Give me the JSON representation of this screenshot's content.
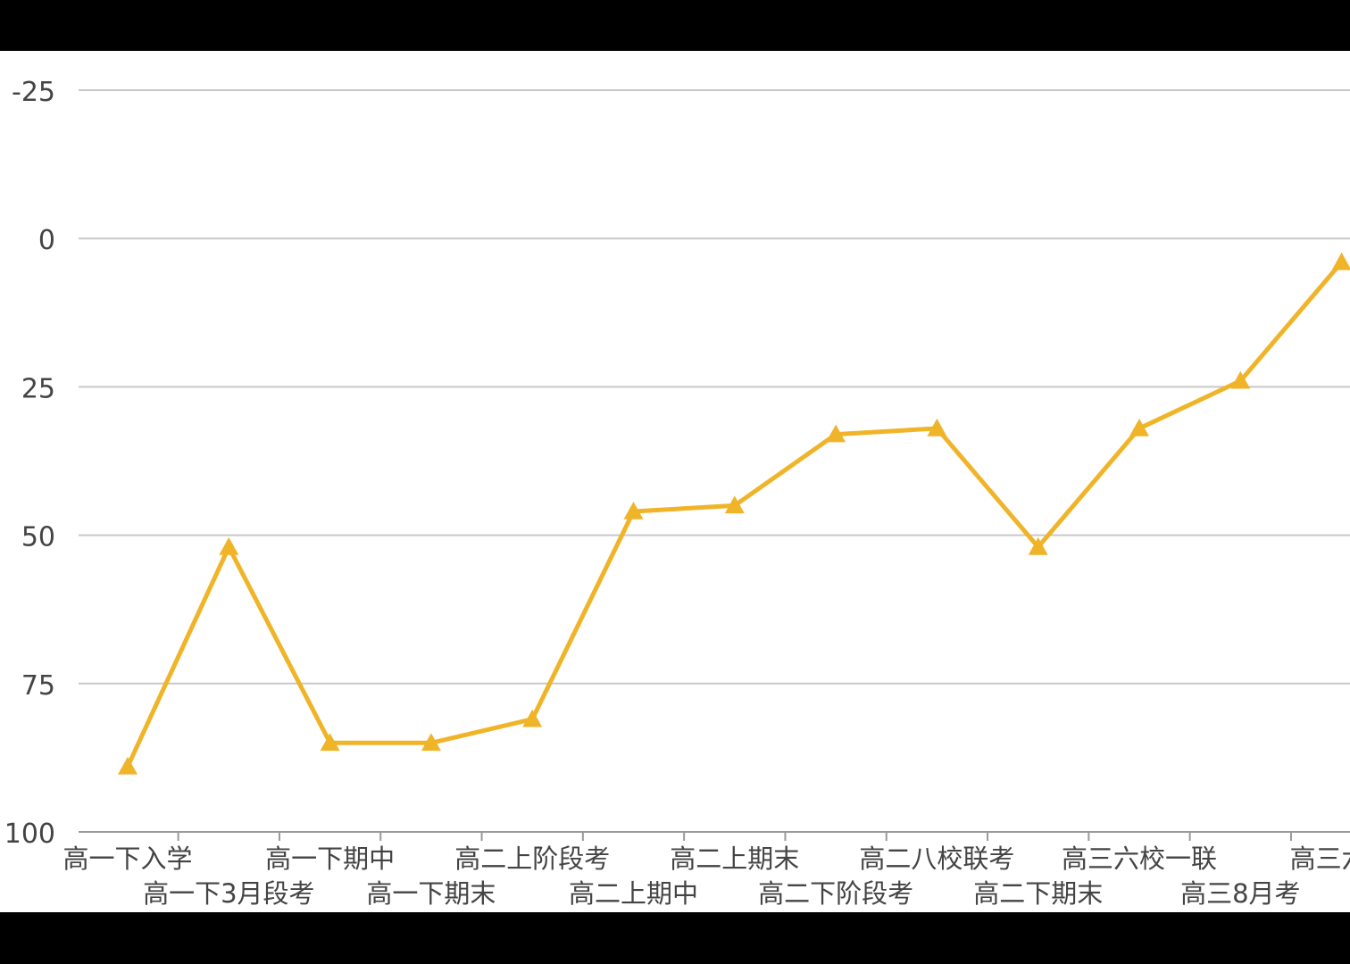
{
  "chart_data": {
    "type": "line",
    "title": "",
    "xlabel": "",
    "ylabel": "",
    "y_inverted": true,
    "ylim": [
      -25,
      100
    ],
    "yticks": [
      -25,
      0,
      25,
      50,
      75,
      100
    ],
    "grid": true,
    "legend": "none",
    "categories": [
      "高一下入学",
      "高一下3月段考",
      "高一下期中",
      "高一下期末",
      "高二上阶段考",
      "高二上期中",
      "高二上期末",
      "高二下阶段考",
      "高二八校联考",
      "高二下期末",
      "高三六校一联",
      "高三8月考",
      "高三六校"
    ],
    "series": [
      {
        "values": [
          89,
          52,
          85,
          85,
          81,
          46,
          45,
          33,
          32,
          52,
          32,
          24,
          4
        ]
      }
    ],
    "colors": {
      "line": "#f0b429",
      "grid": "#c8c8c8",
      "axis": "#999999"
    }
  }
}
